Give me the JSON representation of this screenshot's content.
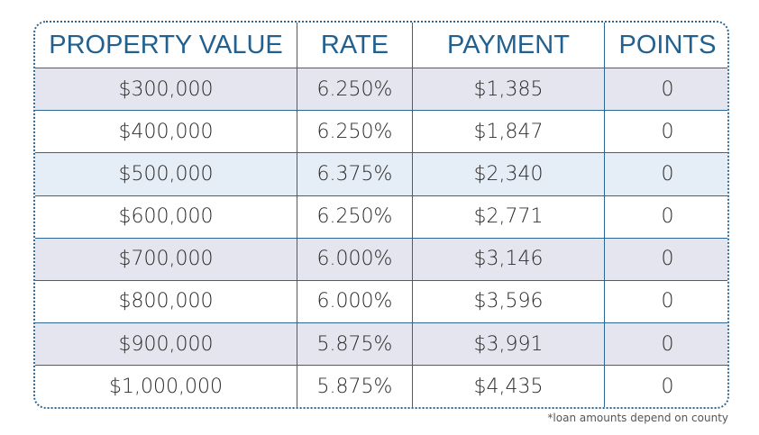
{
  "table": {
    "header": [
      "PROPERTY VALUE",
      "RATE",
      "PAYMENT",
      "POINTS"
    ],
    "rows": [
      [
        "$300,000",
        "6.250%",
        "$1,385",
        "0"
      ],
      [
        "$400,000",
        "6.250%",
        "$1,847",
        "0"
      ],
      [
        "$500,000",
        "6.375%",
        "$2,340",
        "0"
      ],
      [
        "$600,000",
        "6.250%",
        "$2,771",
        "0"
      ],
      [
        "$700,000",
        "6.000%",
        "$3,146",
        "0"
      ],
      [
        "$800,000",
        "6.000%",
        "$3,596",
        "0"
      ],
      [
        "$900,000",
        "5.875%",
        "$3,991",
        "0"
      ],
      [
        "$1,000,000",
        "5.875%",
        "$4,435",
        "0"
      ]
    ]
  },
  "footnote": "*loan amounts depend on county"
}
